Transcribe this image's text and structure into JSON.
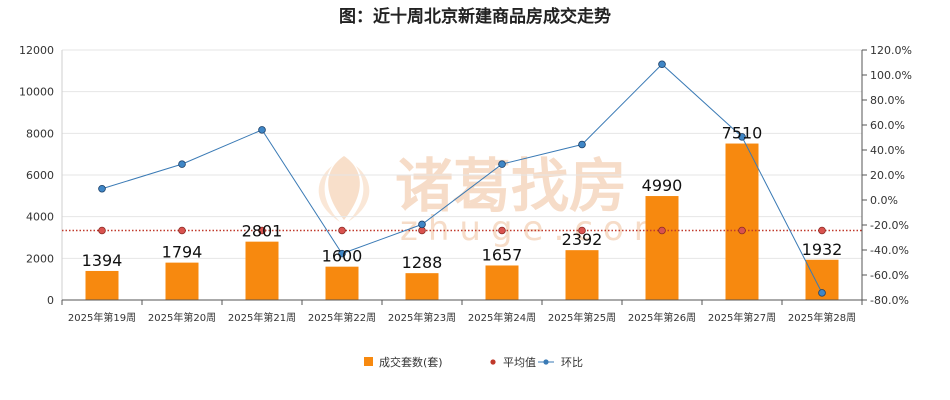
{
  "chart_data": {
    "type": "bar",
    "title": "图：近十周北京新建商品房成交走势",
    "categories": [
      "2025年第19周",
      "2025年第20周",
      "2025年第21周",
      "2025年第22周",
      "2025年第23周",
      "2025年第24周",
      "2025年第25周",
      "2025年第26周",
      "2025年第27周",
      "2025年第28周"
    ],
    "series": [
      {
        "name": "成交套数(套)",
        "type": "bar",
        "axis": "left",
        "values": [
          1394,
          1794,
          2801,
          1600,
          1288,
          1657,
          2392,
          4990,
          7510,
          1932
        ],
        "labels": [
          "1394",
          "1794",
          "2801",
          "1600",
          "1288",
          "1657",
          "2392",
          "4990",
          "7510",
          "1932"
        ],
        "color": "#f7890f"
      },
      {
        "name": "平均值",
        "type": "line",
        "axis": "left",
        "values": [
          3336,
          3336,
          3336,
          3336,
          3336,
          3336,
          3336,
          3336,
          3336,
          3336
        ],
        "color": "#c0392b"
      },
      {
        "name": "环比",
        "type": "line",
        "axis": "right",
        "values": [
          9.0,
          28.7,
          56.1,
          -42.9,
          -19.5,
          28.7,
          44.4,
          108.6,
          50.5,
          -74.3
        ],
        "color": "#3a7ab5"
      }
    ],
    "y_left": {
      "min": 0,
      "max": 12000,
      "step": 2000,
      "ticks": [
        "0",
        "2000",
        "4000",
        "6000",
        "8000",
        "10000",
        "12000"
      ]
    },
    "y_right": {
      "min": -80,
      "max": 120,
      "step": 20,
      "ticks": [
        "-80.0%",
        "-60.0%",
        "-40.0%",
        "-20.0%",
        "0.0%",
        "20.0%",
        "40.0%",
        "60.0%",
        "80.0%",
        "100.0%",
        "120.0%"
      ]
    },
    "grid": true,
    "legend": "bottom-center"
  },
  "watermark": {
    "text": "诸葛找房",
    "subtext": "zhuge.com"
  }
}
